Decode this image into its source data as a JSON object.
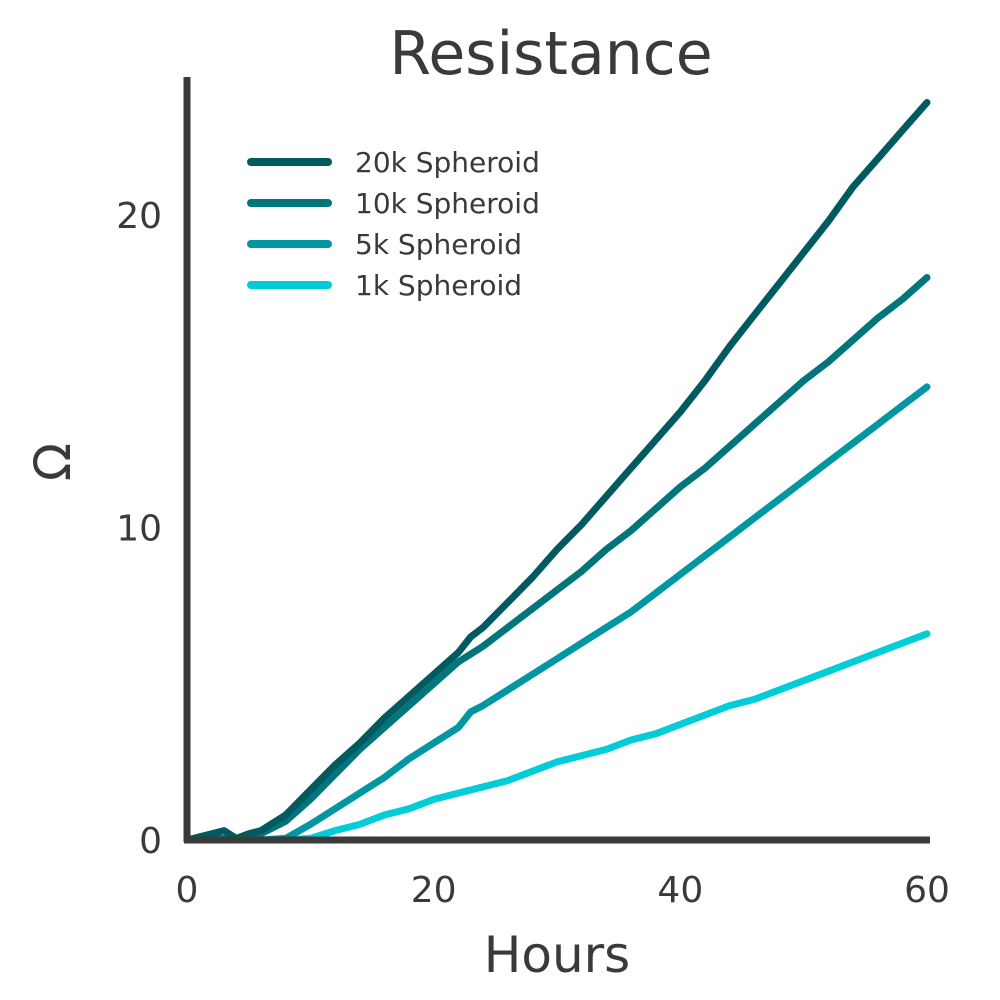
{
  "chart_data": {
    "type": "line",
    "title": "Resistance",
    "xlabel": "Hours",
    "ylabel": "Ω",
    "xlim": [
      0,
      60
    ],
    "ylim": [
      0,
      24
    ],
    "x_ticks": [
      0,
      20,
      40,
      60
    ],
    "y_ticks": [
      0,
      10,
      20
    ],
    "grid": false,
    "legend_position": "top-left",
    "series": [
      {
        "name": "20k Spheroid",
        "color": "#005a60",
        "x": [
          0,
          2,
          3,
          4,
          5,
          6,
          8,
          10,
          12,
          14,
          16,
          18,
          20,
          22,
          23,
          24,
          26,
          28,
          30,
          32,
          34,
          36,
          38,
          40,
          42,
          44,
          46,
          48,
          50,
          52,
          54,
          56,
          58,
          60
        ],
        "y": [
          0,
          0.2,
          0.3,
          0.05,
          0.2,
          0.3,
          0.8,
          1.6,
          2.4,
          3.1,
          3.9,
          4.6,
          5.3,
          6.0,
          6.5,
          6.8,
          7.6,
          8.4,
          9.3,
          10.1,
          11.0,
          11.9,
          12.8,
          13.7,
          14.7,
          15.8,
          16.8,
          17.8,
          18.8,
          19.8,
          20.9,
          21.8,
          22.7,
          23.6
        ]
      },
      {
        "name": "10k Spheroid",
        "color": "#00757c",
        "x": [
          0,
          2,
          4,
          6,
          8,
          10,
          12,
          14,
          16,
          18,
          20,
          22,
          24,
          26,
          28,
          30,
          32,
          34,
          36,
          38,
          40,
          42,
          44,
          46,
          48,
          50,
          52,
          54,
          56,
          58,
          60
        ],
        "y": [
          0,
          0.05,
          0.05,
          0.2,
          0.6,
          1.3,
          2.1,
          2.9,
          3.6,
          4.3,
          5.0,
          5.7,
          6.2,
          6.8,
          7.4,
          8.0,
          8.6,
          9.3,
          9.9,
          10.6,
          11.3,
          11.9,
          12.6,
          13.3,
          14.0,
          14.7,
          15.3,
          16.0,
          16.7,
          17.3,
          18.0
        ]
      },
      {
        "name": "5k Spheroid",
        "color": "#0097a3",
        "x": [
          0,
          4,
          6,
          8,
          10,
          12,
          14,
          16,
          18,
          20,
          22,
          23,
          24,
          26,
          28,
          30,
          32,
          34,
          36,
          38,
          40,
          42,
          44,
          46,
          48,
          50,
          52,
          54,
          56,
          58,
          60
        ],
        "y": [
          0,
          0,
          0,
          0.05,
          0.5,
          1.0,
          1.5,
          2.0,
          2.6,
          3.1,
          3.6,
          4.1,
          4.3,
          4.8,
          5.3,
          5.8,
          6.3,
          6.8,
          7.3,
          7.9,
          8.5,
          9.1,
          9.7,
          10.3,
          10.9,
          11.5,
          12.1,
          12.7,
          13.3,
          13.9,
          14.5
        ]
      },
      {
        "name": "1k Spheroid",
        "color": "#00cdd8",
        "x": [
          0,
          8,
          10,
          12,
          14,
          16,
          18,
          20,
          22,
          24,
          26,
          28,
          30,
          32,
          34,
          36,
          38,
          40,
          42,
          44,
          46,
          48,
          50,
          52,
          54,
          56,
          58,
          60
        ],
        "y": [
          0,
          0,
          0.05,
          0.3,
          0.5,
          0.8,
          1.0,
          1.3,
          1.5,
          1.7,
          1.9,
          2.2,
          2.5,
          2.7,
          2.9,
          3.2,
          3.4,
          3.7,
          4.0,
          4.3,
          4.5,
          4.8,
          5.1,
          5.4,
          5.7,
          6.0,
          6.3,
          6.6
        ]
      }
    ]
  }
}
